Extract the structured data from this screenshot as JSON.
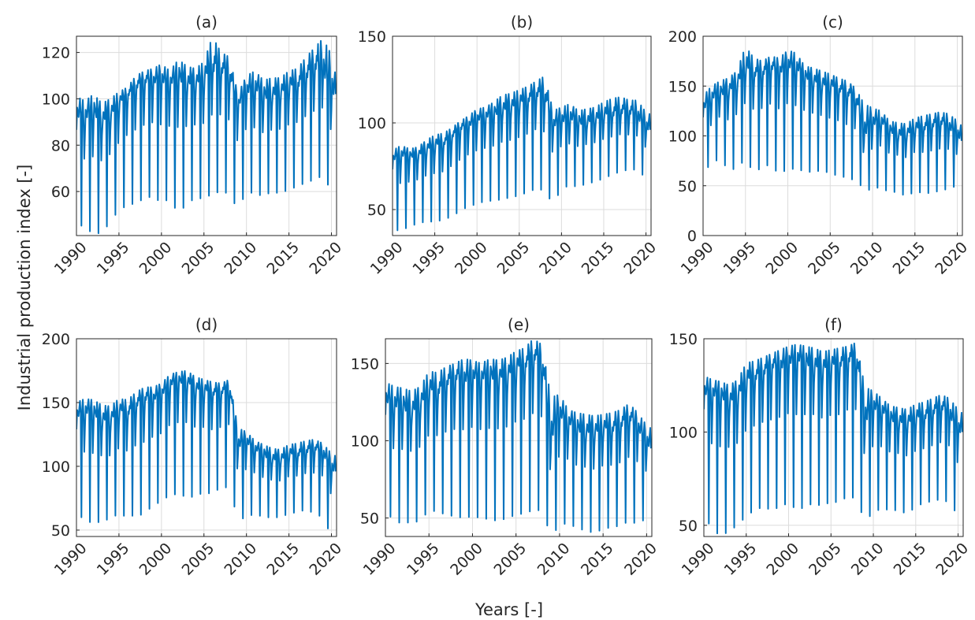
{
  "figure": {
    "ylabel": "Industrial production index [-]",
    "xlabel": "Years [-]"
  },
  "chart_data": [
    {
      "type": "line",
      "title": "(a)",
      "color": "#0072BD",
      "xlim": [
        1990,
        2020.6
      ],
      "ylim": [
        41,
        127
      ],
      "xticks": [
        1990,
        1995,
        2000,
        2005,
        2010,
        2015,
        2020
      ],
      "yticks": [
        60,
        80,
        100,
        120
      ],
      "grid": true,
      "series": [
        {
          "x": [
            1990,
            1991,
            1992,
            1993,
            1994,
            1995,
            1996,
            1997,
            1998,
            1999,
            2000,
            2001,
            2002,
            2003,
            2004,
            2005,
            2006,
            2007,
            2008,
            2009,
            2010,
            2011,
            2012,
            2013,
            2014,
            2015,
            2016,
            2017,
            2018,
            2019,
            2020,
            2020.5
          ],
          "high": [
            101,
            99,
            102,
            98,
            100,
            103,
            105,
            110,
            112,
            113,
            115,
            112,
            117,
            114,
            113,
            116,
            127,
            120,
            118,
            102,
            110,
            112,
            108,
            109,
            109,
            112,
            113,
            118,
            122,
            126,
            119,
            110
          ],
          "low": [
            47,
            44,
            42,
            42,
            47,
            52,
            54,
            55,
            57,
            58,
            55,
            57,
            50,
            55,
            57,
            57,
            59,
            60,
            59,
            52,
            60,
            59,
            58,
            60,
            59,
            61,
            62,
            64,
            65,
            67,
            60,
            63
          ],
          "base": [
            92,
            90,
            93,
            90,
            92,
            97,
            101,
            104,
            106,
            107,
            107,
            105,
            108,
            106,
            106,
            107,
            112,
            111,
            108,
            97,
            102,
            103,
            100,
            101,
            102,
            104,
            105,
            108,
            111,
            112,
            100,
            102
          ]
        }
      ]
    },
    {
      "type": "line",
      "title": "(b)",
      "color": "#0072BD",
      "xlim": [
        1990,
        2020.6
      ],
      "ylim": [
        35,
        150
      ],
      "xticks": [
        1990,
        1995,
        2000,
        2005,
        2010,
        2015,
        2020
      ],
      "yticks": [
        50,
        100,
        150
      ],
      "grid": true,
      "series": [
        {
          "x": [
            1990,
            1991,
            1992,
            1993,
            1994,
            1995,
            1996,
            1997,
            1998,
            1999,
            2000,
            2001,
            2002,
            2003,
            2004,
            2005,
            2006,
            2007,
            2008,
            2009,
            2010,
            2011,
            2012,
            2013,
            2014,
            2015,
            2016,
            2017,
            2018,
            2019,
            2020,
            2020.5
          ],
          "high": [
            84,
            87,
            85,
            86,
            90,
            93,
            94,
            97,
            101,
            104,
            108,
            109,
            112,
            116,
            117,
            119,
            121,
            124,
            127,
            107,
            109,
            111,
            107,
            108,
            109,
            112,
            114,
            115,
            113,
            113,
            106,
            105
          ],
          "low": [
            38,
            38,
            40,
            42,
            43,
            43,
            44,
            46,
            49,
            52,
            53,
            55,
            55,
            56,
            57,
            58,
            60,
            62,
            61,
            53,
            62,
            64,
            63,
            65,
            66,
            68,
            70,
            72,
            73,
            73,
            68,
            70
          ],
          "base": [
            78,
            80,
            80,
            81,
            84,
            86,
            87,
            91,
            95,
            98,
            101,
            102,
            104,
            107,
            108,
            110,
            112,
            115,
            113,
            98,
            100,
            101,
            99,
            100,
            101,
            103,
            104,
            105,
            104,
            103,
            95,
            96
          ]
        }
      ]
    },
    {
      "type": "line",
      "title": "(c)",
      "color": "#0072BD",
      "xlim": [
        1990,
        2020.6
      ],
      "ylim": [
        0,
        200
      ],
      "xticks": [
        1990,
        1995,
        2000,
        2005,
        2010,
        2015,
        2020
      ],
      "yticks": [
        0,
        50,
        100,
        150,
        200
      ],
      "grid": true,
      "series": [
        {
          "x": [
            1990,
            1991,
            1992,
            1993,
            1994,
            1995,
            1996,
            1997,
            1998,
            1999,
            2000,
            2001,
            2002,
            2003,
            2004,
            2005,
            2006,
            2007,
            2008,
            2009,
            2010,
            2011,
            2012,
            2013,
            2014,
            2015,
            2016,
            2017,
            2018,
            2019,
            2020,
            2020.5
          ],
          "high": [
            140,
            150,
            155,
            158,
            165,
            190,
            178,
            175,
            180,
            178,
            186,
            183,
            170,
            168,
            165,
            162,
            158,
            155,
            148,
            132,
            128,
            125,
            115,
            113,
            112,
            118,
            120,
            122,
            124,
            122,
            115,
            110
          ],
          "low": [
            72,
            66,
            82,
            62,
            70,
            75,
            64,
            68,
            72,
            60,
            68,
            66,
            65,
            63,
            66,
            62,
            60,
            58,
            55,
            47,
            45,
            50,
            42,
            45,
            38,
            45,
            42,
            43,
            45,
            47,
            50,
            48
          ],
          "base": [
            125,
            135,
            140,
            145,
            150,
            165,
            160,
            160,
            165,
            163,
            168,
            165,
            158,
            155,
            150,
            148,
            145,
            140,
            135,
            100,
            110,
            112,
            104,
            100,
            100,
            105,
            106,
            108,
            110,
            108,
            98,
            95
          ]
        }
      ]
    },
    {
      "type": "line",
      "title": "(d)",
      "color": "#0072BD",
      "xlim": [
        1990,
        2020.6
      ],
      "ylim": [
        45,
        200
      ],
      "xticks": [
        1990,
        1995,
        2000,
        2005,
        2010,
        2015,
        2020
      ],
      "yticks": [
        50,
        100,
        150,
        200
      ],
      "grid": true,
      "series": [
        {
          "x": [
            1990,
            1991,
            1992,
            1993,
            1994,
            1995,
            1996,
            1997,
            1998,
            1999,
            2000,
            2001,
            2002,
            2003,
            2004,
            2005,
            2006,
            2007,
            2008,
            2009,
            2010,
            2011,
            2012,
            2013,
            2014,
            2015,
            2016,
            2017,
            2018,
            2019,
            2020,
            2020.5
          ],
          "high": [
            150,
            153,
            152,
            148,
            147,
            153,
            152,
            158,
            162,
            162,
            165,
            172,
            174,
            175,
            170,
            168,
            166,
            165,
            168,
            130,
            127,
            120,
            117,
            114,
            113,
            117,
            118,
            120,
            121,
            118,
            110,
            108
          ],
          "low": [
            63,
            58,
            55,
            57,
            59,
            63,
            60,
            62,
            62,
            70,
            72,
            78,
            78,
            76,
            76,
            80,
            78,
            84,
            83,
            58,
            60,
            63,
            60,
            60,
            60,
            63,
            64,
            66,
            63,
            60,
            45,
            62
          ],
          "base": [
            138,
            140,
            140,
            136,
            135,
            142,
            140,
            146,
            150,
            152,
            155,
            162,
            165,
            166,
            160,
            158,
            156,
            156,
            160,
            115,
            118,
            112,
            108,
            105,
            104,
            108,
            108,
            110,
            112,
            110,
            95,
            96
          ]
        }
      ]
    },
    {
      "type": "line",
      "title": "(e)",
      "color": "#0072BD",
      "xlim": [
        1990,
        2020.6
      ],
      "ylim": [
        38,
        166
      ],
      "xticks": [
        1990,
        1995,
        2000,
        2005,
        2010,
        2015,
        2020
      ],
      "yticks": [
        50,
        100,
        150
      ],
      "grid": true,
      "series": [
        {
          "x": [
            1990,
            1991,
            1992,
            1993,
            1994,
            1995,
            1996,
            1997,
            1998,
            1999,
            2000,
            2001,
            2002,
            2003,
            2004,
            2005,
            2006,
            2007,
            2008,
            2009,
            2010,
            2011,
            2012,
            2013,
            2014,
            2015,
            2016,
            2017,
            2018,
            2019,
            2020,
            2020.5
          ],
          "high": [
            138,
            135,
            134,
            132,
            135,
            145,
            144,
            148,
            150,
            153,
            152,
            150,
            153,
            152,
            154,
            158,
            160,
            166,
            162,
            128,
            130,
            120,
            118,
            117,
            116,
            117,
            118,
            120,
            124,
            118,
            110,
            108
          ],
          "low": [
            56,
            47,
            47,
            47,
            48,
            55,
            54,
            52,
            51,
            50,
            51,
            50,
            49,
            48,
            50,
            52,
            53,
            55,
            55,
            38,
            45,
            47,
            43,
            42,
            40,
            43,
            44,
            45,
            48,
            46,
            50,
            48
          ],
          "base": [
            125,
            120,
            120,
            118,
            122,
            130,
            130,
            135,
            138,
            138,
            140,
            138,
            140,
            140,
            141,
            145,
            147,
            152,
            148,
            100,
            115,
            110,
            106,
            105,
            104,
            106,
            106,
            108,
            112,
            108,
            96,
            95
          ]
        }
      ]
    },
    {
      "type": "line",
      "title": "(f)",
      "color": "#0072BD",
      "xlim": [
        1990,
        2020.6
      ],
      "ylim": [
        44,
        150
      ],
      "xticks": [
        1990,
        1995,
        2000,
        2005,
        2010,
        2015,
        2020
      ],
      "yticks": [
        50,
        100,
        150
      ],
      "grid": true,
      "series": [
        {
          "x": [
            1990,
            1991,
            1992,
            1993,
            1994,
            1995,
            1996,
            1997,
            1998,
            1999,
            2000,
            2001,
            2002,
            2003,
            2004,
            2005,
            2006,
            2007,
            2008,
            2009,
            2010,
            2011,
            2012,
            2013,
            2014,
            2015,
            2016,
            2017,
            2018,
            2019,
            2020,
            2020.5
          ],
          "high": [
            130,
            128,
            127,
            125,
            128,
            137,
            138,
            140,
            142,
            144,
            146,
            147,
            146,
            145,
            143,
            144,
            145,
            146,
            148,
            124,
            122,
            118,
            114,
            113,
            112,
            115,
            116,
            118,
            120,
            118,
            112,
            110
          ],
          "low": [
            55,
            48,
            44,
            47,
            50,
            55,
            58,
            60,
            58,
            60,
            62,
            58,
            60,
            62,
            60,
            63,
            62,
            66,
            64,
            52,
            57,
            59,
            58,
            58,
            56,
            60,
            62,
            63,
            64,
            62,
            55,
            60
          ],
          "base": [
            120,
            118,
            118,
            116,
            118,
            126,
            128,
            130,
            133,
            134,
            136,
            137,
            136,
            135,
            133,
            134,
            135,
            137,
            138,
            105,
            112,
            110,
            106,
            105,
            104,
            106,
            107,
            109,
            111,
            109,
            98,
            100
          ]
        }
      ]
    }
  ]
}
